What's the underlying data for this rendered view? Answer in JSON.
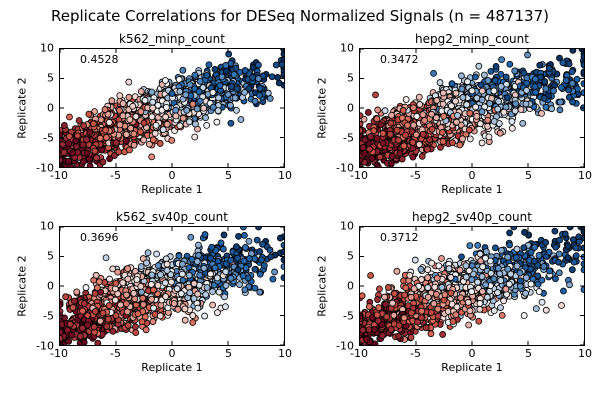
{
  "figure": {
    "title": "Replicate Correlations for DESeq Normalized Signals (n = 487137)",
    "background": "#ffffff",
    "text_color": "#000000"
  },
  "chart_data": {
    "type": "scatter",
    "layout": "2x2 subplot grid",
    "title": "Replicate Correlations for DESeq Normalized Signals (n = 487137)",
    "n_total": 487137,
    "xlabel": "Replicate 1",
    "ylabel": "Replicate 2",
    "xlim": [
      -10,
      10
    ],
    "ylim": [
      -10,
      10
    ],
    "xticks": [
      -10,
      -5,
      0,
      5,
      10
    ],
    "yticks": [
      -10,
      -5,
      0,
      5,
      10
    ],
    "grid": false,
    "marker": {
      "shape": "circle",
      "edge_color": "#000000",
      "radius_px": 3
    },
    "colormap": {
      "description": "diverging red-white-blue (RdBu): red = low signal, white = mid, dark blue = high signal",
      "stops": [
        {
          "pos": 0.0,
          "color": "#67001f"
        },
        {
          "pos": 0.25,
          "color": "#d6604d"
        },
        {
          "pos": 0.5,
          "color": "#f7f7f7"
        },
        {
          "pos": 0.75,
          "color": "#2166ac"
        },
        {
          "pos": 1.0,
          "color": "#053061"
        }
      ]
    },
    "subplots": [
      {
        "title": "k562_minp_count",
        "correlation": 0.4528,
        "annotation": "0.4528",
        "seed": 11
      },
      {
        "title": "hepg2_minp_count",
        "correlation": 0.3472,
        "annotation": "0.3472",
        "seed": 22
      },
      {
        "title": "k562_sv40p_count",
        "correlation": 0.3696,
        "annotation": "0.3696",
        "seed": 33
      },
      {
        "title": "hepg2_sv40p_count",
        "correlation": 0.3712,
        "annotation": "0.3712",
        "seed": 44
      }
    ],
    "render": {
      "points_per_subplot": 1800,
      "cloud_mean": [
        -2,
        -1
      ],
      "cloud_sd": [
        3.6,
        3.0
      ],
      "note": "dense diagonal point cloud from lower-left (red) to upper-right (dark blue), clipped at axis limits"
    }
  }
}
